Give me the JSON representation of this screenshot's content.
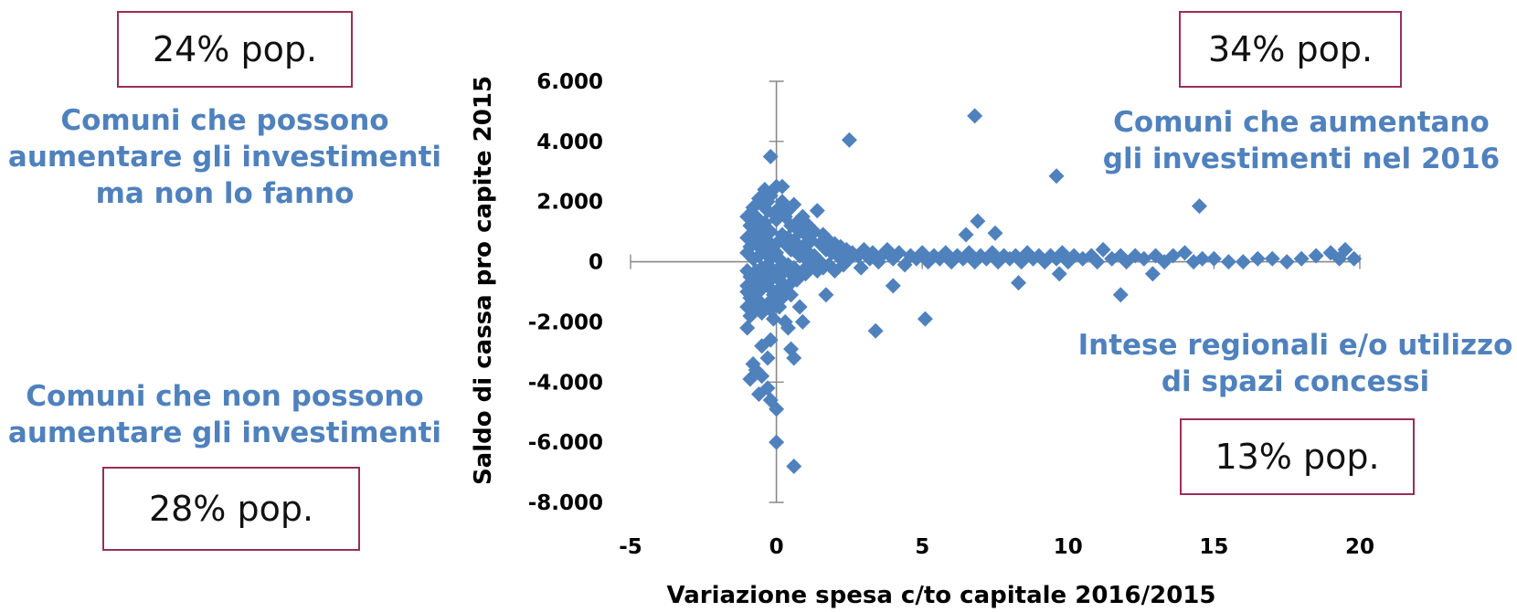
{
  "annotations": {
    "top_left_box": "24% pop.",
    "top_right_box": "34% pop.",
    "bottom_left_box": "28% pop.",
    "bottom_right_box": "13% pop.",
    "top_left_text": [
      "Comuni che possono",
      "aumentare gli investimenti",
      "ma non lo fanno"
    ],
    "top_right_text": [
      "Comuni che aumentano",
      "gli investimenti nel 2016"
    ],
    "bottom_left_text": [
      "Comuni che non possono",
      "aumentare gli investimenti"
    ],
    "bottom_right_text": [
      "Intese regionali e/o utilizzo",
      "di spazi concessi"
    ]
  },
  "colors": {
    "marker": "#4f81bd",
    "box_border": "#9b2d5a",
    "text_accent": "#4f81bd",
    "axis": "#888888"
  },
  "chart_data": {
    "type": "scatter",
    "title": "",
    "xlabel": "Variazione spesa c/to capitale 2016/2015",
    "ylabel": "Saldo di cassa pro capite 2015",
    "xlim": [
      -5,
      20
    ],
    "ylim": [
      -8000,
      6000
    ],
    "xticks": [
      -5,
      0,
      5,
      10,
      15,
      20
    ],
    "xtick_labels": [
      "-5",
      "0",
      "5",
      "10",
      "15",
      "20"
    ],
    "yticks": [
      6000,
      4000,
      2000,
      0,
      -2000,
      -4000,
      -6000,
      -8000
    ],
    "ytick_labels": [
      "6.000",
      "4.000",
      "2.000",
      "0",
      "-2.000",
      "-4.000",
      "-6.000",
      "-8.000"
    ],
    "marker": "diamond",
    "grid": false,
    "legend": "none",
    "series": [
      {
        "points": [
          [
            -1.0,
            800
          ],
          [
            -1.0,
            300
          ],
          [
            -1.0,
            -300
          ],
          [
            -1.0,
            -800
          ],
          [
            -1.0,
            -1500
          ],
          [
            -0.9,
            1200
          ],
          [
            -0.9,
            500
          ],
          [
            -0.9,
            -500
          ],
          [
            -0.9,
            -1200
          ],
          [
            -0.9,
            -1800
          ],
          [
            -0.8,
            1800
          ],
          [
            -0.8,
            900
          ],
          [
            -0.8,
            100
          ],
          [
            -0.8,
            -700
          ],
          [
            -0.8,
            -1400
          ],
          [
            -0.7,
            1500
          ],
          [
            -0.7,
            600
          ],
          [
            -0.7,
            -300
          ],
          [
            -0.7,
            -1000
          ],
          [
            -0.7,
            -1600
          ],
          [
            -0.6,
            2100
          ],
          [
            -0.6,
            1100
          ],
          [
            -0.6,
            200
          ],
          [
            -0.6,
            -600
          ],
          [
            -0.6,
            -1300
          ],
          [
            -0.5,
            1900
          ],
          [
            -0.5,
            800
          ],
          [
            -0.5,
            -200
          ],
          [
            -0.5,
            -900
          ],
          [
            -0.5,
            -1700
          ],
          [
            -0.4,
            2400
          ],
          [
            -0.4,
            1300
          ],
          [
            -0.4,
            400
          ],
          [
            -0.4,
            -500
          ],
          [
            -0.4,
            -1500
          ],
          [
            -0.3,
            1700
          ],
          [
            -0.3,
            700
          ],
          [
            -0.3,
            -100
          ],
          [
            -0.3,
            -800
          ],
          [
            -0.3,
            -1400
          ],
          [
            -0.2,
            2200
          ],
          [
            -0.2,
            1000
          ],
          [
            -0.2,
            100
          ],
          [
            -0.2,
            -600
          ],
          [
            -0.2,
            -1600
          ],
          [
            -0.1,
            1600
          ],
          [
            -0.1,
            500
          ],
          [
            -0.1,
            -300
          ],
          [
            -0.1,
            -1100
          ],
          [
            -0.1,
            -1900
          ],
          [
            0.0,
            2500
          ],
          [
            0.0,
            1400
          ],
          [
            0.0,
            300
          ],
          [
            0.0,
            -400
          ],
          [
            0.0,
            -1300
          ],
          [
            0.1,
            1800
          ],
          [
            0.1,
            700
          ],
          [
            0.1,
            -200
          ],
          [
            0.1,
            -900
          ],
          [
            0.1,
            -1500
          ],
          [
            0.2,
            2000
          ],
          [
            0.2,
            900
          ],
          [
            0.2,
            0
          ],
          [
            0.2,
            -700
          ],
          [
            0.2,
            -1200
          ],
          [
            0.3,
            1500
          ],
          [
            0.3,
            600
          ],
          [
            0.3,
            -300
          ],
          [
            0.3,
            -1000
          ],
          [
            0.4,
            1700
          ],
          [
            0.4,
            800
          ],
          [
            0.4,
            -100
          ],
          [
            0.4,
            -800
          ],
          [
            0.5,
            1200
          ],
          [
            0.5,
            400
          ],
          [
            0.5,
            -400
          ],
          [
            0.5,
            -1100
          ],
          [
            0.6,
            1900
          ],
          [
            0.6,
            700
          ],
          [
            0.6,
            -200
          ],
          [
            0.7,
            1300
          ],
          [
            0.7,
            300
          ],
          [
            0.7,
            -600
          ],
          [
            0.8,
            1000
          ],
          [
            0.8,
            200
          ],
          [
            0.8,
            -500
          ],
          [
            0.9,
            1500
          ],
          [
            0.9,
            500
          ],
          [
            0.9,
            -300
          ],
          [
            1.0,
            900
          ],
          [
            1.0,
            100
          ],
          [
            1.0,
            -400
          ],
          [
            1.1,
            1200
          ],
          [
            1.1,
            300
          ],
          [
            1.2,
            700
          ],
          [
            1.2,
            -200
          ],
          [
            1.3,
            1000
          ],
          [
            1.3,
            200
          ],
          [
            1.4,
            1700
          ],
          [
            1.4,
            -300
          ],
          [
            1.5,
            600
          ],
          [
            1.5,
            0
          ],
          [
            1.6,
            900
          ],
          [
            1.6,
            -200
          ],
          [
            1.7,
            400
          ],
          [
            1.8,
            700
          ],
          [
            1.8,
            -100
          ],
          [
            1.9,
            300
          ],
          [
            2.0,
            600
          ],
          [
            2.0,
            -300
          ],
          [
            2.1,
            200
          ],
          [
            2.2,
            500
          ],
          [
            2.3,
            -100
          ],
          [
            2.4,
            400
          ],
          [
            2.5,
            100
          ],
          [
            2.6,
            300
          ],
          [
            2.8,
            200
          ],
          [
            2.9,
            -200
          ],
          [
            3.0,
            400
          ],
          [
            3.2,
            100
          ],
          [
            3.3,
            300
          ],
          [
            3.5,
            0
          ],
          [
            3.6,
            200
          ],
          [
            3.8,
            400
          ],
          [
            4.0,
            100
          ],
          [
            4.2,
            300
          ],
          [
            4.4,
            -100
          ],
          [
            4.6,
            200
          ],
          [
            4.8,
            100
          ],
          [
            5.0,
            300
          ],
          [
            5.2,
            0
          ],
          [
            5.4,
            200
          ],
          [
            5.6,
            100
          ],
          [
            5.8,
            300
          ],
          [
            6.0,
            0
          ],
          [
            6.2,
            200
          ],
          [
            6.4,
            100
          ],
          [
            6.6,
            300
          ],
          [
            6.8,
            0
          ],
          [
            7.0,
            200
          ],
          [
            7.2,
            100
          ],
          [
            7.4,
            300
          ],
          [
            7.6,
            0
          ],
          [
            7.8,
            200
          ],
          [
            8.0,
            100
          ],
          [
            8.2,
            200
          ],
          [
            8.4,
            0
          ],
          [
            8.6,
            300
          ],
          [
            8.8,
            100
          ],
          [
            9.0,
            200
          ],
          [
            9.2,
            0
          ],
          [
            9.4,
            200
          ],
          [
            9.6,
            100
          ],
          [
            9.8,
            300
          ],
          [
            10.0,
            0
          ],
          [
            10.2,
            200
          ],
          [
            10.5,
            100
          ],
          [
            10.8,
            200
          ],
          [
            11.0,
            0
          ],
          [
            11.2,
            400
          ],
          [
            11.5,
            100
          ],
          [
            11.8,
            200
          ],
          [
            12.0,
            0
          ],
          [
            12.3,
            200
          ],
          [
            12.6,
            100
          ],
          [
            13.0,
            200
          ],
          [
            13.3,
            0
          ],
          [
            13.6,
            200
          ],
          [
            14.0,
            300
          ],
          [
            14.3,
            0
          ],
          [
            14.6,
            100
          ],
          [
            15.0,
            100
          ],
          [
            15.5,
            0
          ],
          [
            16.0,
            0
          ],
          [
            16.5,
            100
          ],
          [
            17.0,
            100
          ],
          [
            17.5,
            0
          ],
          [
            18.0,
            100
          ],
          [
            18.5,
            200
          ],
          [
            19.0,
            300
          ],
          [
            19.3,
            100
          ],
          [
            19.5,
            400
          ],
          [
            19.8,
            100
          ],
          [
            -0.2,
            3500
          ],
          [
            -0.3,
            2000
          ],
          [
            0.2,
            2500
          ],
          [
            2.5,
            4050
          ],
          [
            6.8,
            4850
          ],
          [
            9.6,
            2850
          ],
          [
            14.5,
            1850
          ],
          [
            6.9,
            1350
          ],
          [
            6.5,
            900
          ],
          [
            7.5,
            950
          ],
          [
            -0.5,
            -2800
          ],
          [
            -0.2,
            -2600
          ],
          [
            -0.3,
            -3200
          ],
          [
            0.4,
            -2200
          ],
          [
            0.5,
            -2900
          ],
          [
            0.6,
            -3200
          ],
          [
            0.9,
            -2000
          ],
          [
            1.7,
            -1100
          ],
          [
            3.4,
            -2300
          ],
          [
            5.1,
            -1900
          ],
          [
            -0.8,
            -3400
          ],
          [
            -0.7,
            -3600
          ],
          [
            -0.9,
            -3900
          ],
          [
            -0.5,
            -3800
          ],
          [
            -0.3,
            -4200
          ],
          [
            -0.6,
            -4400
          ],
          [
            -0.2,
            -4600
          ],
          [
            0.0,
            -4900
          ],
          [
            0.0,
            -6000
          ],
          [
            0.6,
            -6800
          ],
          [
            8.3,
            -700
          ],
          [
            9.7,
            -400
          ],
          [
            11.8,
            -1100
          ],
          [
            12.9,
            -400
          ],
          [
            4.0,
            -800
          ],
          [
            0.3,
            -2000
          ],
          [
            0.8,
            -1500
          ],
          [
            -1.0,
            -2200
          ],
          [
            -1.0,
            -1000
          ],
          [
            -1.0,
            1500
          ]
        ]
      }
    ]
  }
}
